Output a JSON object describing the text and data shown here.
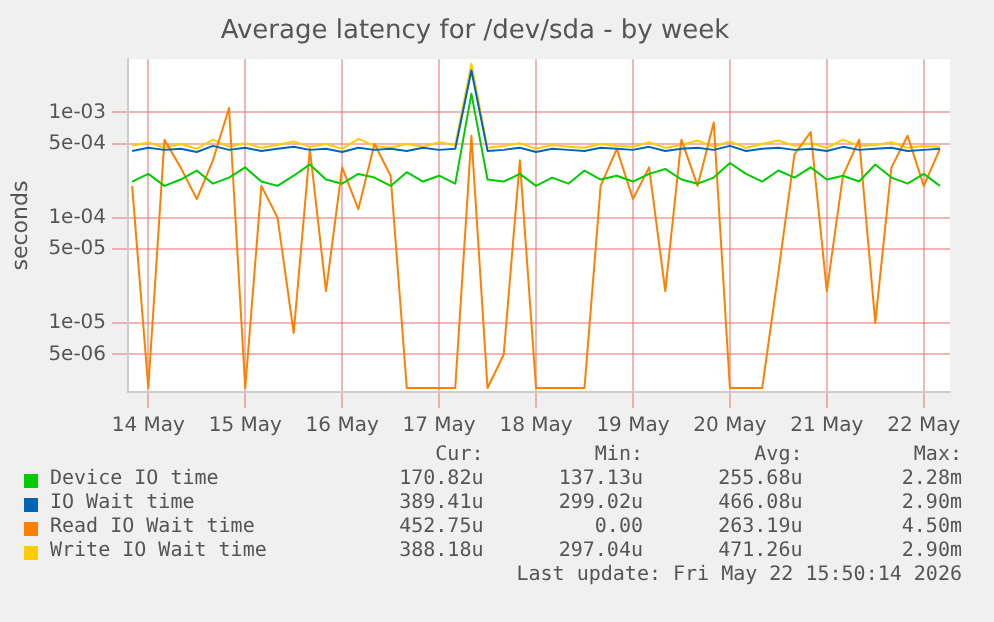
{
  "chart_data": {
    "type": "line",
    "title": "Average latency for /dev/sda - by week",
    "ylabel": "seconds",
    "x": [
      "2026-05-13T20:00",
      "2026-05-14T00:00",
      "2026-05-14T04:00",
      "2026-05-14T08:00",
      "2026-05-14T12:00",
      "2026-05-14T16:00",
      "2026-05-14T20:00",
      "2026-05-15T00:00",
      "2026-05-15T04:00",
      "2026-05-15T08:00",
      "2026-05-15T12:00",
      "2026-05-15T16:00",
      "2026-05-15T20:00",
      "2026-05-16T00:00",
      "2026-05-16T04:00",
      "2026-05-16T08:00",
      "2026-05-16T12:00",
      "2026-05-16T16:00",
      "2026-05-16T20:00",
      "2026-05-17T00:00",
      "2026-05-17T04:00",
      "2026-05-17T08:00",
      "2026-05-17T12:00",
      "2026-05-17T16:00",
      "2026-05-17T20:00",
      "2026-05-18T00:00",
      "2026-05-18T04:00",
      "2026-05-18T08:00",
      "2026-05-18T12:00",
      "2026-05-18T16:00",
      "2026-05-18T20:00",
      "2026-05-19T00:00",
      "2026-05-19T04:00",
      "2026-05-19T08:00",
      "2026-05-19T12:00",
      "2026-05-19T16:00",
      "2026-05-19T20:00",
      "2026-05-20T00:00",
      "2026-05-20T04:00",
      "2026-05-20T08:00",
      "2026-05-20T12:00",
      "2026-05-20T16:00",
      "2026-05-20T20:00",
      "2026-05-21T00:00",
      "2026-05-21T04:00",
      "2026-05-21T08:00",
      "2026-05-21T12:00",
      "2026-05-21T16:00",
      "2026-05-21T20:00",
      "2026-05-22T00:00",
      "2026-05-22T04:00"
    ],
    "series": [
      {
        "name": "Device IO time",
        "color": "#00cc00",
        "values": [
          0.00022,
          0.00026,
          0.0002,
          0.00023,
          0.00028,
          0.00021,
          0.00024,
          0.0003,
          0.00022,
          0.0002,
          0.00025,
          0.00032,
          0.00023,
          0.00021,
          0.00026,
          0.00024,
          0.0002,
          0.00027,
          0.00022,
          0.00025,
          0.00021,
          0.0015,
          0.00023,
          0.00022,
          0.00026,
          0.0002,
          0.00024,
          0.00021,
          0.00028,
          0.00023,
          0.00025,
          0.00022,
          0.00026,
          0.00029,
          0.00023,
          0.00021,
          0.00024,
          0.00033,
          0.00026,
          0.00022,
          0.00028,
          0.00024,
          0.0003,
          0.00023,
          0.00025,
          0.00022,
          0.00032,
          0.00024,
          0.00021,
          0.00026,
          0.0002
        ]
      },
      {
        "name": "IO Wait time",
        "color": "#0066b3",
        "values": [
          0.00043,
          0.00046,
          0.00044,
          0.00045,
          0.00042,
          0.00048,
          0.00044,
          0.00046,
          0.00043,
          0.00045,
          0.00047,
          0.00044,
          0.00045,
          0.00042,
          0.00046,
          0.00044,
          0.00045,
          0.00043,
          0.00046,
          0.00044,
          0.00045,
          0.0025,
          0.00043,
          0.00044,
          0.00046,
          0.00042,
          0.00045,
          0.00044,
          0.00043,
          0.00046,
          0.00045,
          0.00044,
          0.00047,
          0.00043,
          0.00045,
          0.00046,
          0.00044,
          0.00048,
          0.00043,
          0.00045,
          0.00046,
          0.00044,
          0.00045,
          0.00043,
          0.00047,
          0.00044,
          0.00045,
          0.00046,
          0.00043,
          0.00044,
          0.00045
        ]
      },
      {
        "name": "Read IO Wait time",
        "color": "#ff8000",
        "values": [
          0.0002,
          2.4e-06,
          0.00055,
          0.0003,
          0.00015,
          0.00035,
          0.0011,
          2.4e-06,
          0.0002,
          0.0001,
          8e-06,
          0.00045,
          2e-05,
          0.0003,
          0.00012,
          0.0005,
          0.00025,
          2.4e-06,
          2.4e-06,
          2.4e-06,
          2.4e-06,
          0.0006,
          2.4e-06,
          5e-06,
          0.00035,
          2.4e-06,
          2.4e-06,
          2.4e-06,
          2.4e-06,
          0.0002,
          0.00045,
          0.00015,
          0.0003,
          2e-05,
          0.00055,
          0.0002,
          0.0008,
          2.4e-06,
          2.4e-06,
          2.4e-06,
          3e-05,
          0.0004,
          0.00065,
          2e-05,
          0.00025,
          0.00055,
          1e-05,
          0.0003,
          0.0006,
          0.0002,
          0.00045
        ]
      },
      {
        "name": "Write IO Wait time",
        "color": "#ffcc00",
        "values": [
          0.00048,
          0.00052,
          0.00046,
          0.0005,
          0.00045,
          0.00055,
          0.00047,
          0.00051,
          0.00046,
          0.00049,
          0.00053,
          0.00047,
          0.0005,
          0.00045,
          0.00056,
          0.00048,
          0.00046,
          0.0005,
          0.00047,
          0.00052,
          0.00049,
          0.0029,
          0.00046,
          0.00048,
          0.00051,
          0.00045,
          0.00049,
          0.00047,
          0.00046,
          0.0005,
          0.00048,
          0.00047,
          0.00052,
          0.00046,
          0.00049,
          0.00054,
          0.00047,
          0.00053,
          0.00046,
          0.0005,
          0.00054,
          0.00048,
          0.00051,
          0.00046,
          0.00055,
          0.00048,
          0.00049,
          0.00052,
          0.00046,
          0.00048,
          0.00047
        ]
      }
    ],
    "xlim": [
      "2026-05-13T19:00",
      "2026-05-22T06:30"
    ],
    "xticks": [
      {
        "value": "2026-05-14T00:00",
        "label": "14 May"
      },
      {
        "value": "2026-05-15T00:00",
        "label": "15 May"
      },
      {
        "value": "2026-05-16T00:00",
        "label": "16 May"
      },
      {
        "value": "2026-05-17T00:00",
        "label": "17 May"
      },
      {
        "value": "2026-05-18T00:00",
        "label": "18 May"
      },
      {
        "value": "2026-05-19T00:00",
        "label": "19 May"
      },
      {
        "value": "2026-05-20T00:00",
        "label": "20 May"
      },
      {
        "value": "2026-05-21T00:00",
        "label": "21 May"
      },
      {
        "value": "2026-05-22T00:00",
        "label": "22 May"
      }
    ],
    "ylim": [
      2.2e-06,
      0.0032
    ],
    "log": "y",
    "yticks": [
      {
        "value": 5e-06,
        "label": "5e-06"
      },
      {
        "value": 1e-05,
        "label": "1e-05"
      },
      {
        "value": 5e-05,
        "label": "5e-05"
      },
      {
        "value": 0.0001,
        "label": "1e-04"
      },
      {
        "value": 0.0005,
        "label": "5e-04"
      },
      {
        "value": 0.001,
        "label": "1e-03"
      }
    ],
    "grid": true,
    "legend": "bottom",
    "marker": "none",
    "line_style": "solid",
    "annotations": [
      "Cur:",
      "Min:",
      "Avg:",
      "Max:",
      "170.82u",
      "137.13u",
      "255.68u",
      "2.28m",
      "389.41u",
      "299.02u",
      "466.08u",
      "2.90m",
      "452.75u",
      "0.00",
      "263.19u",
      "4.50m",
      "388.18u",
      "297.04u",
      "471.26u",
      "2.90m",
      "Last update: Fri May 22 15:50:14 2026"
    ]
  }
}
